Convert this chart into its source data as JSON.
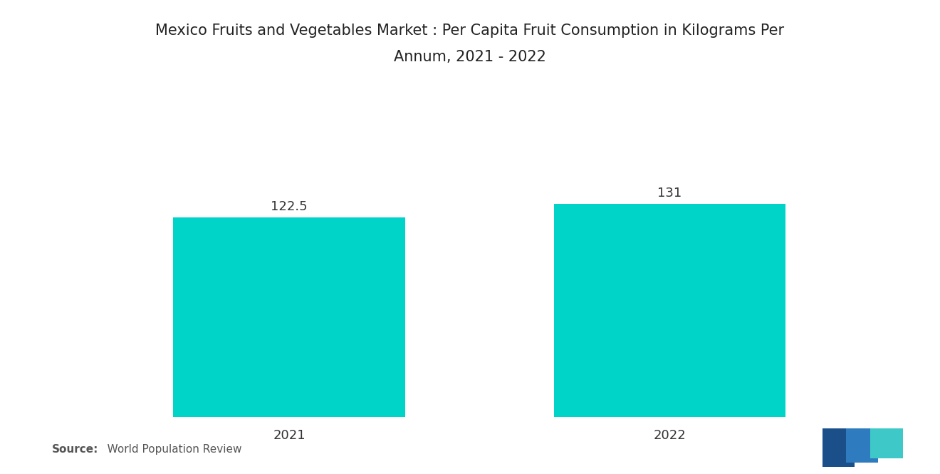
{
  "title_line1": "Mexico Fruits and Vegetables Market : Per Capita Fruit Consumption in Kilograms Per",
  "title_line2": "Annum, 2021 - 2022",
  "categories": [
    "2021",
    "2022"
  ],
  "values": [
    122.5,
    131
  ],
  "bar_color": "#00D4C8",
  "background_color": "#ffffff",
  "tick_label_fontsize": 13,
  "title_fontsize": 15,
  "value_label_fontsize": 13,
  "value_labels": [
    "122.5",
    "131"
  ],
  "source_bold": "Source:",
  "source_rest": "   World Population Review",
  "source_fontsize": 11,
  "source_color": "#555555",
  "ylim": [
    0,
    160
  ],
  "bar_width": 0.28,
  "x_positions": [
    0.27,
    0.73
  ],
  "xlim": [
    0,
    1
  ],
  "logo_colors": [
    "#1a4f8a",
    "#2e7bbf",
    "#3ec8c8"
  ],
  "title_color": "#222222",
  "tick_label_color": "#333333",
  "value_label_color": "#333333"
}
